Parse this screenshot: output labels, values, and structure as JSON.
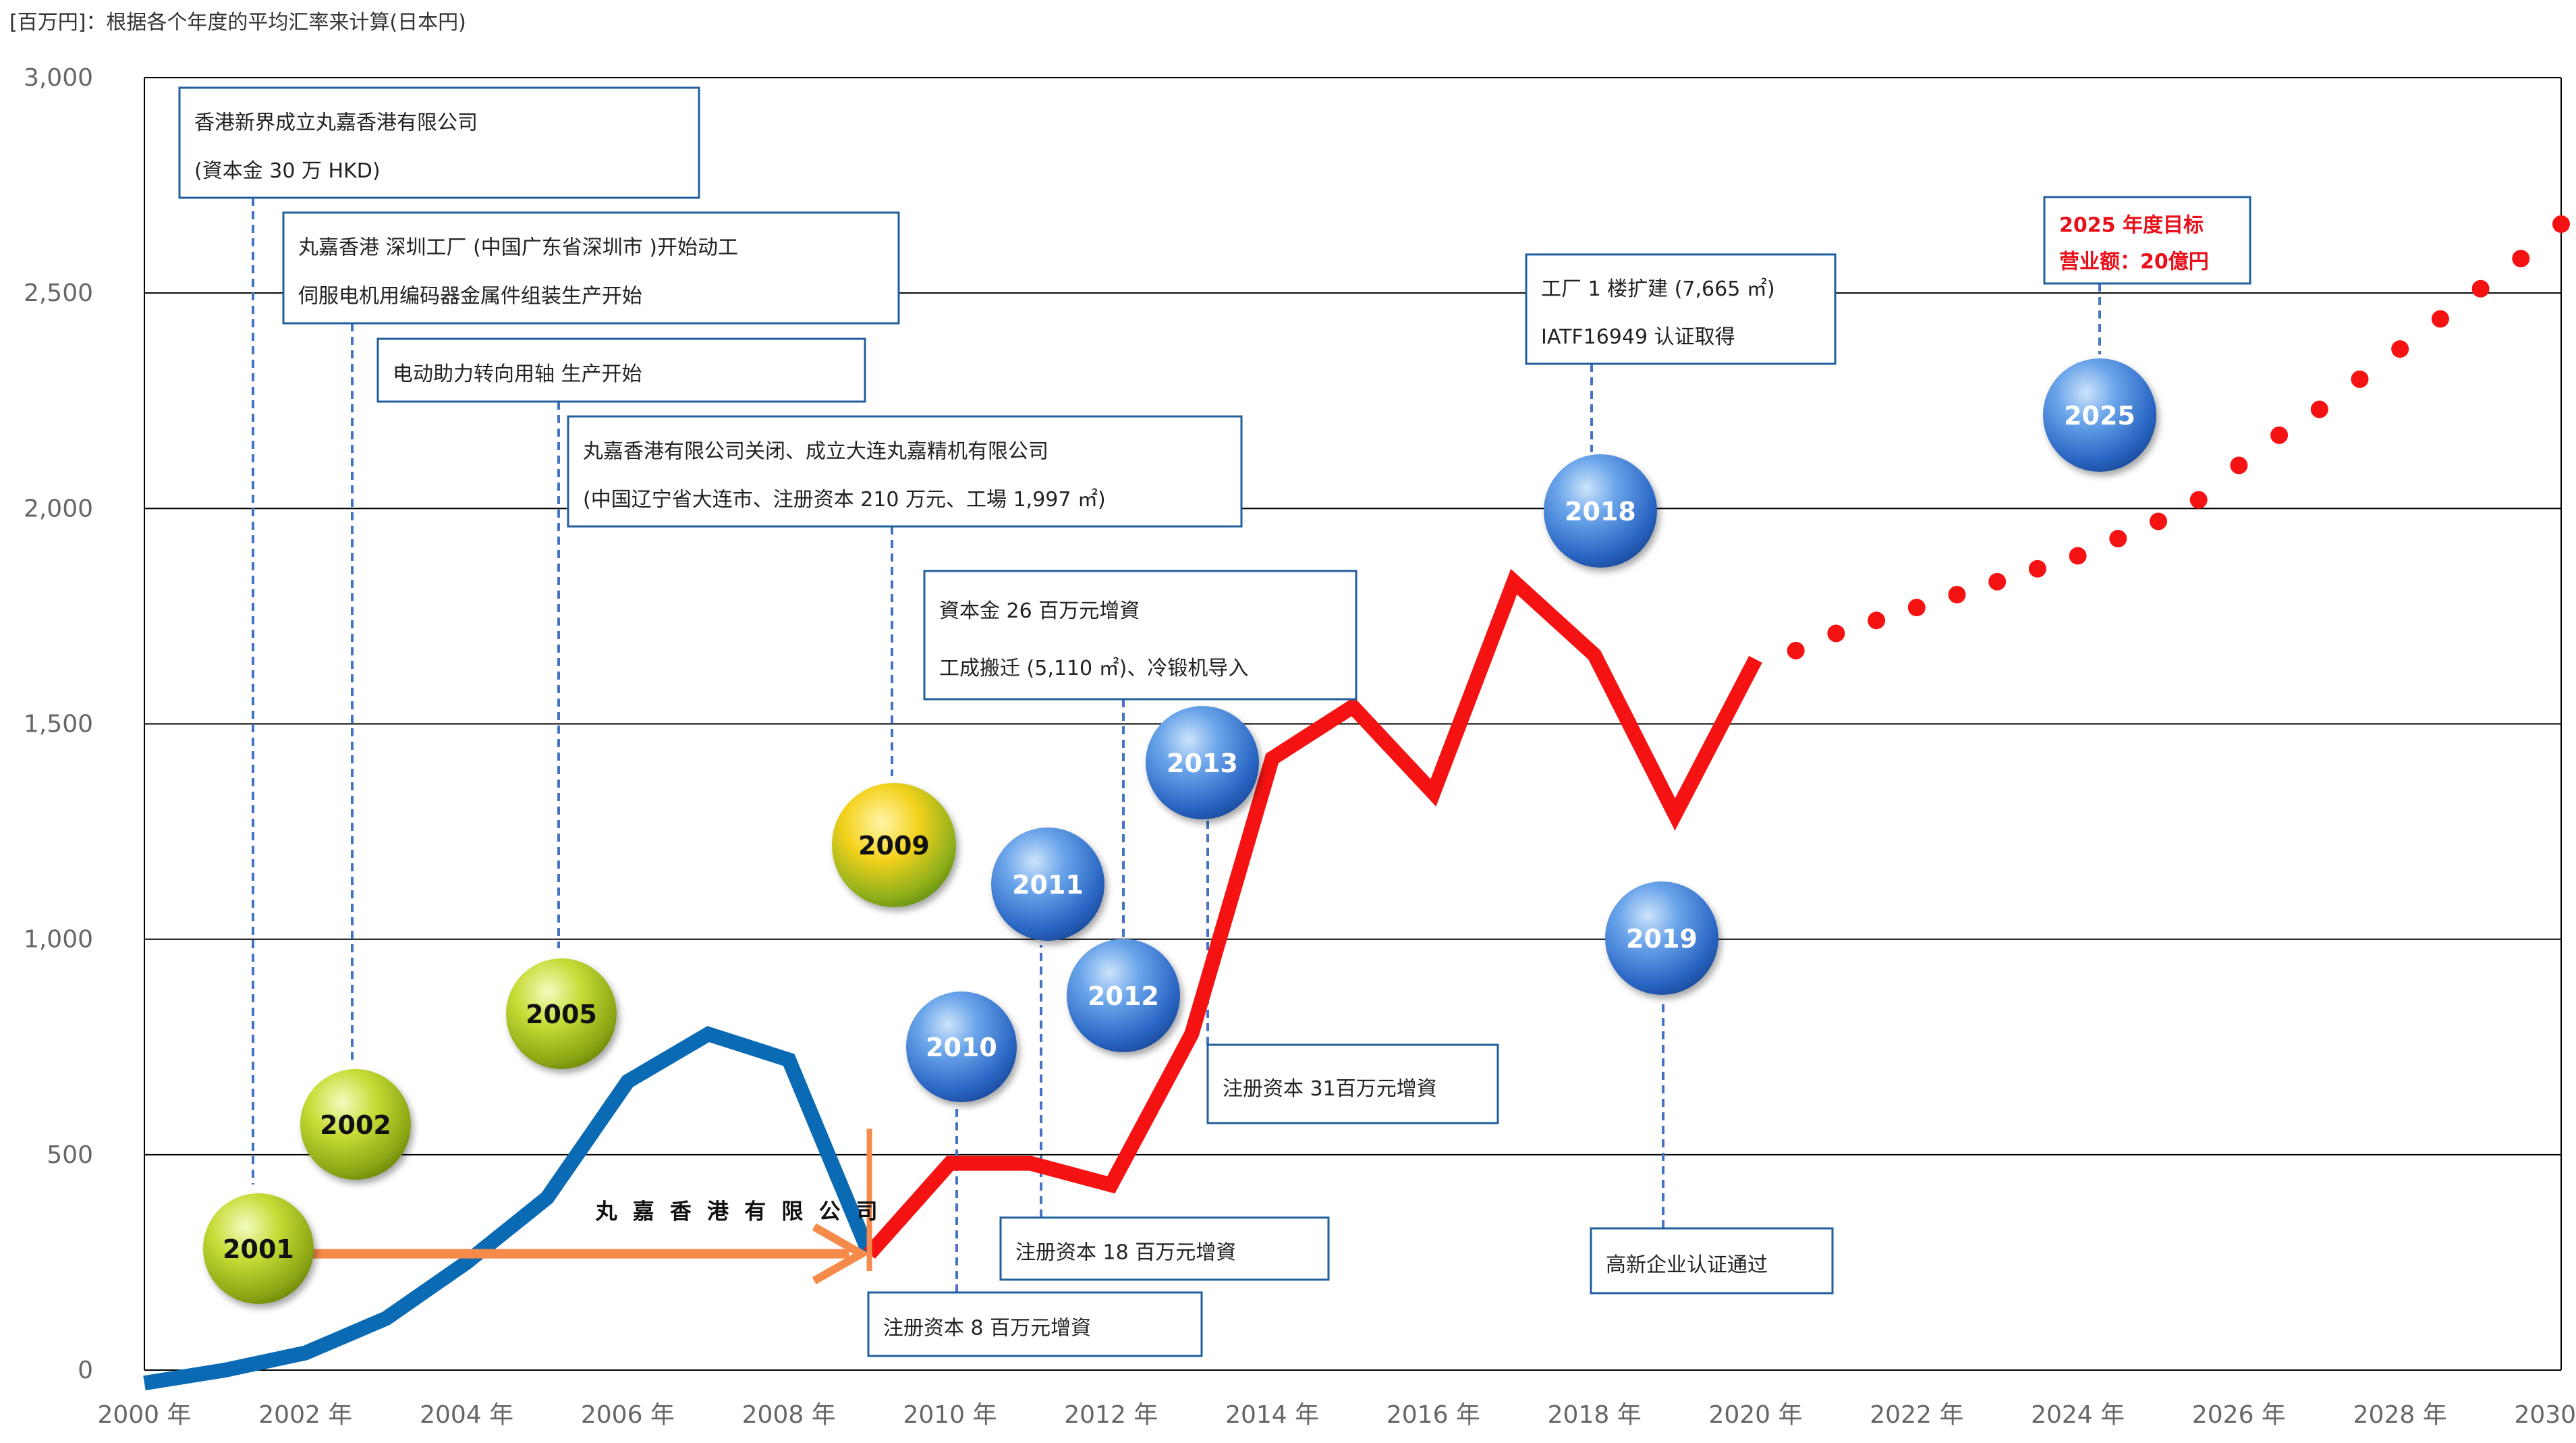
{
  "unit_note": "[百万円]：根据各个年度的平均汇率来计算(日本円)",
  "chart_data": {
    "type": "line",
    "ylim": [
      0,
      3000
    ],
    "y_ticks": [
      0,
      500,
      1000,
      1500,
      2000,
      2500,
      3000
    ],
    "y_tick_labels": [
      "0",
      "500",
      "1,000",
      "1,500",
      "2,000",
      "2,500",
      "3,000"
    ],
    "xlim": [
      2000,
      2030
    ],
    "x_ticks": [
      2000,
      2002,
      2004,
      2006,
      2008,
      2010,
      2012,
      2014,
      2016,
      2018,
      2020,
      2022,
      2024,
      2026,
      2028,
      2030
    ],
    "x_tick_labels": [
      "2000 年",
      "2002 年",
      "2004 年",
      "2006 年",
      "2008 年",
      "2010 年",
      "2012 年",
      "2014 年",
      "2016 年",
      "2018 年",
      "2020 年",
      "2022 年",
      "2024 年",
      "2026 年",
      "2028 年",
      "2030 年"
    ],
    "grid": true,
    "series": [
      {
        "name": "丸嘉香港有限公司",
        "color": "#0a6ab3",
        "style": "solid",
        "x": [
          2000,
          2001,
          2002,
          2003,
          2004,
          2005,
          2006,
          2007,
          2008,
          2009
        ],
        "y": [
          -30,
          0,
          40,
          120,
          250,
          400,
          670,
          780,
          720,
          270
        ]
      },
      {
        "name": "",
        "color": "#f41212",
        "style": "solid",
        "x": [
          2009,
          2010,
          2011,
          2012,
          2013,
          2014,
          2015,
          2016,
          2017,
          2018,
          2019,
          2020
        ],
        "y": [
          270,
          480,
          480,
          430,
          780,
          1420,
          1540,
          1340,
          1830,
          1660,
          1290,
          1650
        ]
      },
      {
        "name": "",
        "color": "#f41212",
        "style": "dotted",
        "x": [
          2020.5,
          2021,
          2021.5,
          2022,
          2022.5,
          2023,
          2023.5,
          2024,
          2024.5,
          2025,
          2025.5,
          2026,
          2026.5,
          2027,
          2027.5,
          2028,
          2028.5,
          2029,
          2029.5,
          2030
        ],
        "y": [
          1670,
          1710,
          1740,
          1770,
          1800,
          1830,
          1860,
          1890,
          1930,
          1970,
          2020,
          2100,
          2170,
          2230,
          2300,
          2370,
          2440,
          2510,
          2580,
          2660
        ]
      }
    ],
    "milestone_bubbles": [
      {
        "label": "2001",
        "style": "green"
      },
      {
        "label": "2002",
        "style": "green"
      },
      {
        "label": "2005",
        "style": "green"
      },
      {
        "label": "2009",
        "style": "gold"
      },
      {
        "label": "2010",
        "style": "blue"
      },
      {
        "label": "2011",
        "style": "blue"
      },
      {
        "label": "2012",
        "style": "blue"
      },
      {
        "label": "2013",
        "style": "blue"
      },
      {
        "label": "2018",
        "style": "blue"
      },
      {
        "label": "2019",
        "style": "blue"
      },
      {
        "label": "2025",
        "style": "blue"
      }
    ],
    "annotations": [
      {
        "lines": [
          "香港新界成立丸嘉香港有限公司",
          "(資本金  30 万 HKD)"
        ]
      },
      {
        "lines": [
          "丸嘉香港   深圳工厂   (中国广东省深圳市       )开始动工",
          "伺服电机用编码器金属件组装生产开始"
        ]
      },
      {
        "lines": [
          "电动助力转向用轴                              生产开始"
        ]
      },
      {
        "lines": [
          "丸嘉香港有限公司关闭、成立大连丸嘉精机有限公司",
          "(中国辽宁省大连市、注册资本    210 万元、工場  1,997 ㎡)"
        ]
      },
      {
        "lines": [
          "資本金  26 百万元增資",
          "工成搬迁    (5,110 ㎡)、冷锻机导入"
        ]
      },
      {
        "lines": [
          "工厂 1 楼扩建   (7,665 ㎡)",
          "IATF16949  认证取得"
        ]
      },
      {
        "lines": [
          "2025    年度目标",
          "营业额：20億円"
        ],
        "color": "#e8101a"
      },
      {
        "lines": [
          "注册资本  31百万元增資"
        ]
      },
      {
        "lines": [
          "注册资本    18 百万元增資"
        ]
      },
      {
        "lines": [
          "注册资本  8 百万元增資"
        ]
      },
      {
        "lines": [
          "高新企业认证通过"
        ]
      }
    ],
    "arrow_label": "丸 嘉 香 港 有 限 公 司",
    "colors": {
      "blue_line": "#0a6ab3",
      "red_line": "#f41212",
      "arrow": "#f58a4a",
      "box_border": "#1f5f9e",
      "connector": "#4472c4",
      "grid": "#000000"
    }
  }
}
